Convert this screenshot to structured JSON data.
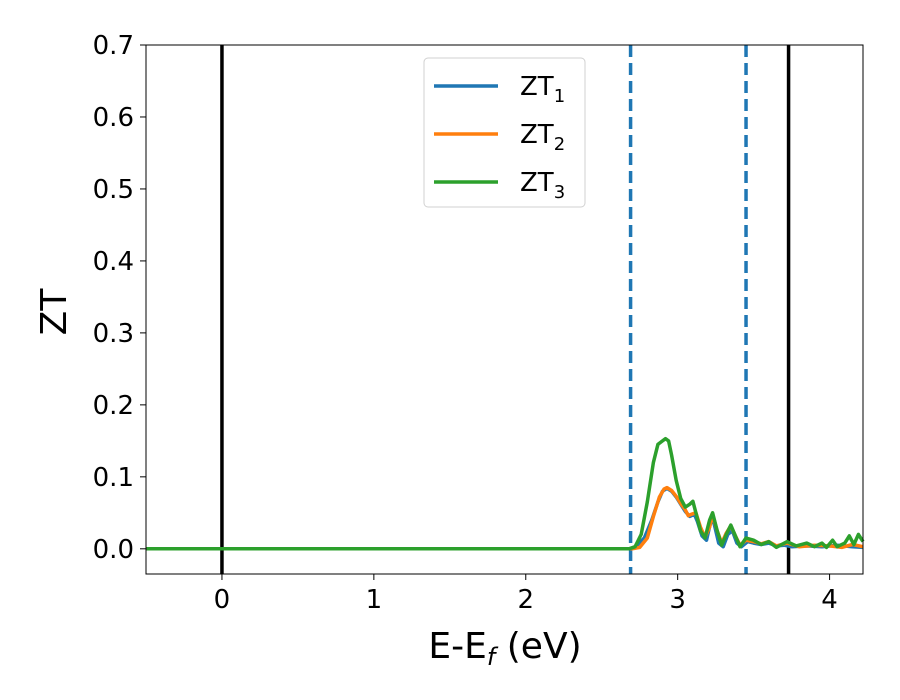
{
  "chart_data": {
    "type": "line",
    "xlabel": "E-E",
    "xlabel_sub": "f",
    "xlabel_unit": "(eV)",
    "ylabel": "ZT",
    "xlim": [
      -0.5,
      4.22
    ],
    "ylim": [
      -0.035,
      0.7
    ],
    "xticks": [
      0,
      1,
      2,
      3,
      4
    ],
    "xtick_labels": [
      "0",
      "1",
      "2",
      "3",
      "4"
    ],
    "yticks": [
      0.0,
      0.1,
      0.2,
      0.3,
      0.4,
      0.5,
      0.6,
      0.7
    ],
    "ytick_labels": [
      "0.0",
      "0.1",
      "0.2",
      "0.3",
      "0.4",
      "0.5",
      "0.6",
      "0.7"
    ],
    "grid": false,
    "legend_position": "top-center",
    "vlines_solid": [
      0.0,
      3.73
    ],
    "vlines_dashed": [
      2.69,
      3.45
    ],
    "series": [
      {
        "name": "ZT",
        "name_sub": "1",
        "color": "#1f77b4",
        "points": [
          [
            -0.5,
            0
          ],
          [
            2.68,
            0
          ],
          [
            2.72,
            0.002
          ],
          [
            2.78,
            0.015
          ],
          [
            2.83,
            0.04
          ],
          [
            2.87,
            0.065
          ],
          [
            2.9,
            0.08
          ],
          [
            2.93,
            0.084
          ],
          [
            2.96,
            0.08
          ],
          [
            2.99,
            0.072
          ],
          [
            3.02,
            0.062
          ],
          [
            3.05,
            0.052
          ],
          [
            3.08,
            0.045
          ],
          [
            3.11,
            0.048
          ],
          [
            3.13,
            0.038
          ],
          [
            3.16,
            0.018
          ],
          [
            3.19,
            0.012
          ],
          [
            3.22,
            0.04
          ],
          [
            3.24,
            0.035
          ],
          [
            3.27,
            0.008
          ],
          [
            3.3,
            0.003
          ],
          [
            3.33,
            0.02
          ],
          [
            3.36,
            0.025
          ],
          [
            3.39,
            0.008
          ],
          [
            3.42,
            0.003
          ],
          [
            3.46,
            0.01
          ],
          [
            3.5,
            0.008
          ],
          [
            3.55,
            0.006
          ],
          [
            3.6,
            0.008
          ],
          [
            3.65,
            0.004
          ],
          [
            3.7,
            0.005
          ],
          [
            3.75,
            0.003
          ],
          [
            3.85,
            0.004
          ],
          [
            3.95,
            0.003
          ],
          [
            4.05,
            0.005
          ],
          [
            4.15,
            0.003
          ],
          [
            4.22,
            0.002
          ]
        ]
      },
      {
        "name": "ZT",
        "name_sub": "2",
        "color": "#ff7f0e",
        "points": [
          [
            -0.5,
            0
          ],
          [
            2.7,
            0
          ],
          [
            2.75,
            0.002
          ],
          [
            2.8,
            0.015
          ],
          [
            2.84,
            0.045
          ],
          [
            2.88,
            0.072
          ],
          [
            2.91,
            0.083
          ],
          [
            2.93,
            0.085
          ],
          [
            2.96,
            0.081
          ],
          [
            2.99,
            0.073
          ],
          [
            3.02,
            0.063
          ],
          [
            3.05,
            0.054
          ],
          [
            3.07,
            0.046
          ],
          [
            3.09,
            0.048
          ],
          [
            3.12,
            0.05
          ],
          [
            3.15,
            0.03
          ],
          [
            3.18,
            0.016
          ],
          [
            3.21,
            0.03
          ],
          [
            3.23,
            0.047
          ],
          [
            3.26,
            0.025
          ],
          [
            3.29,
            0.008
          ],
          [
            3.32,
            0.022
          ],
          [
            3.35,
            0.032
          ],
          [
            3.38,
            0.018
          ],
          [
            3.41,
            0.005
          ],
          [
            3.45,
            0.012
          ],
          [
            3.5,
            0.01
          ],
          [
            3.55,
            0.007
          ],
          [
            3.6,
            0.01
          ],
          [
            3.65,
            0.004
          ],
          [
            3.72,
            0.008
          ],
          [
            3.8,
            0.003
          ],
          [
            3.9,
            0.005
          ],
          [
            4.0,
            0.004
          ],
          [
            4.08,
            0.002
          ],
          [
            4.15,
            0.006
          ],
          [
            4.22,
            0.003
          ]
        ]
      },
      {
        "name": "ZT",
        "name_sub": "3",
        "color": "#2ca02c",
        "points": [
          [
            -0.5,
            0
          ],
          [
            2.68,
            0
          ],
          [
            2.72,
            0.003
          ],
          [
            2.76,
            0.02
          ],
          [
            2.8,
            0.065
          ],
          [
            2.84,
            0.12
          ],
          [
            2.87,
            0.145
          ],
          [
            2.9,
            0.15
          ],
          [
            2.92,
            0.153
          ],
          [
            2.94,
            0.15
          ],
          [
            2.96,
            0.13
          ],
          [
            2.99,
            0.095
          ],
          [
            3.02,
            0.07
          ],
          [
            3.05,
            0.058
          ],
          [
            3.08,
            0.062
          ],
          [
            3.1,
            0.066
          ],
          [
            3.12,
            0.05
          ],
          [
            3.15,
            0.025
          ],
          [
            3.18,
            0.015
          ],
          [
            3.21,
            0.04
          ],
          [
            3.23,
            0.05
          ],
          [
            3.26,
            0.025
          ],
          [
            3.29,
            0.005
          ],
          [
            3.32,
            0.02
          ],
          [
            3.35,
            0.033
          ],
          [
            3.38,
            0.018
          ],
          [
            3.41,
            0.003
          ],
          [
            3.45,
            0.015
          ],
          [
            3.5,
            0.012
          ],
          [
            3.55,
            0.006
          ],
          [
            3.6,
            0.01
          ],
          [
            3.65,
            0.002
          ],
          [
            3.72,
            0.01
          ],
          [
            3.78,
            0.004
          ],
          [
            3.85,
            0.008
          ],
          [
            3.9,
            0.003
          ],
          [
            3.95,
            0.008
          ],
          [
            3.98,
            0.002
          ],
          [
            4.02,
            0.012
          ],
          [
            4.05,
            0.003
          ],
          [
            4.1,
            0.008
          ],
          [
            4.13,
            0.018
          ],
          [
            4.16,
            0.006
          ],
          [
            4.19,
            0.02
          ],
          [
            4.22,
            0.01
          ]
        ]
      }
    ]
  }
}
